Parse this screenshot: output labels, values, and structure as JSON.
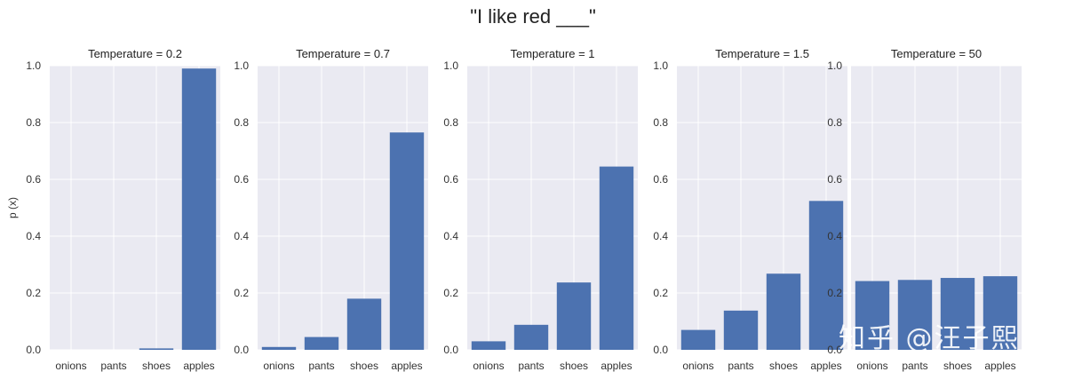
{
  "title": "\"I like red ___\"",
  "ylabel": "p (x)",
  "watermark": "知乎 @汪子熙",
  "colors": {
    "bar": "#4c72b0",
    "plot_bg": "#eaeaf2",
    "grid": "#ffffff",
    "text": "#333333"
  },
  "chart_data": [
    {
      "type": "bar",
      "title": "Temperature = 0.2",
      "categories": [
        "onions",
        "pants",
        "shoes",
        "apples"
      ],
      "values": [
        0.0,
        0.0,
        0.005,
        0.99
      ],
      "ylim": [
        0,
        1.0
      ],
      "yticks": [
        "0.0",
        "0.2",
        "0.4",
        "0.6",
        "0.8",
        "1.0"
      ],
      "grid": true
    },
    {
      "type": "bar",
      "title": "Temperature = 0.7",
      "categories": [
        "onions",
        "pants",
        "shoes",
        "apples"
      ],
      "values": [
        0.01,
        0.045,
        0.18,
        0.765
      ],
      "ylim": [
        0,
        1.0
      ],
      "yticks": [
        "0.0",
        "0.2",
        "0.4",
        "0.6",
        "0.8",
        "1.0"
      ],
      "grid": true
    },
    {
      "type": "bar",
      "title": "Temperature = 1",
      "categories": [
        "onions",
        "pants",
        "shoes",
        "apples"
      ],
      "values": [
        0.03,
        0.088,
        0.237,
        0.645
      ],
      "ylim": [
        0,
        1.0
      ],
      "yticks": [
        "0.0",
        "0.2",
        "0.4",
        "0.6",
        "0.8",
        "1.0"
      ],
      "grid": true
    },
    {
      "type": "bar",
      "title": "Temperature = 1.5",
      "categories": [
        "onions",
        "pants",
        "shoes",
        "apples"
      ],
      "values": [
        0.07,
        0.138,
        0.268,
        0.524
      ],
      "ylim": [
        0,
        1.0
      ],
      "yticks": [
        "0.0",
        "0.2",
        "0.4",
        "0.6",
        "0.8",
        "1.0"
      ],
      "grid": true
    },
    {
      "type": "bar",
      "title": "Temperature = 50",
      "categories": [
        "onions",
        "pants",
        "shoes",
        "apples"
      ],
      "values": [
        0.242,
        0.246,
        0.253,
        0.259
      ],
      "ylim": [
        0,
        1.0
      ],
      "yticks": [
        "0.0",
        "0.2",
        "0.4",
        "0.6",
        "0.8",
        "1.0"
      ],
      "grid": true
    }
  ]
}
